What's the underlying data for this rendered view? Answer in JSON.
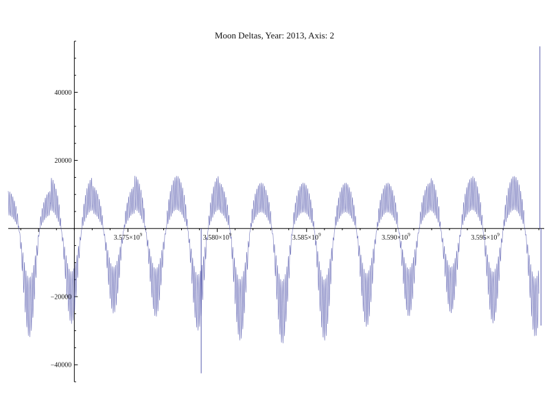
{
  "chart_data": {
    "type": "line",
    "title": "Moon Deltas, Year: 2013, Axis: 2",
    "xlabel": "",
    "ylabel": "",
    "xlim": [
      3568300000.0,
      3598300000.0
    ],
    "ylim": [
      -45000,
      55000
    ],
    "grid": false,
    "x_ticks": [
      {
        "value": 3575000000.0,
        "label": "3.575×10",
        "exp": "9"
      },
      {
        "value": 3580000000.0,
        "label": "3.580×10",
        "exp": "9"
      },
      {
        "value": 3585000000.0,
        "label": "3.585×10",
        "exp": "9"
      },
      {
        "value": 3590000000.0,
        "label": "3.590×10",
        "exp": "9"
      },
      {
        "value": 3595000000.0,
        "label": "3.595×10",
        "exp": "9"
      }
    ],
    "y_ticks": [
      {
        "value": 40000,
        "label": "40000"
      },
      {
        "value": 20000,
        "label": "20000"
      },
      {
        "value": -20000,
        "label": "−20000"
      },
      {
        "value": -40000,
        "label": "−40000"
      }
    ],
    "series": [
      {
        "name": "Moon Deltas Axis 2",
        "color": "#3b3fa0",
        "cycle_period": 2360000.0,
        "carrier_period": 86400.0,
        "x_start": 3568300000.0,
        "x_end": 3598000000.0,
        "envelope_pos_max": [
          11000,
          15000,
          12500,
          15500,
          15500,
          13500,
          13500,
          13500,
          13500,
          13500,
          15000,
          15500,
          15500,
          15000,
          15000
        ],
        "envelope_neg_min": [
          -32000,
          -28000,
          -25000,
          -26000,
          -30000,
          -33000,
          -34000,
          -33000,
          -29000,
          -26000,
          -25000,
          -28000,
          -32000,
          -30000,
          -28000
        ],
        "spikes": [
          {
            "x": 3579100000.0,
            "y": -42500
          },
          {
            "x": 3598060000.0,
            "y": 53500
          },
          {
            "x": 3598120000.0,
            "y": -28500
          }
        ]
      }
    ]
  }
}
